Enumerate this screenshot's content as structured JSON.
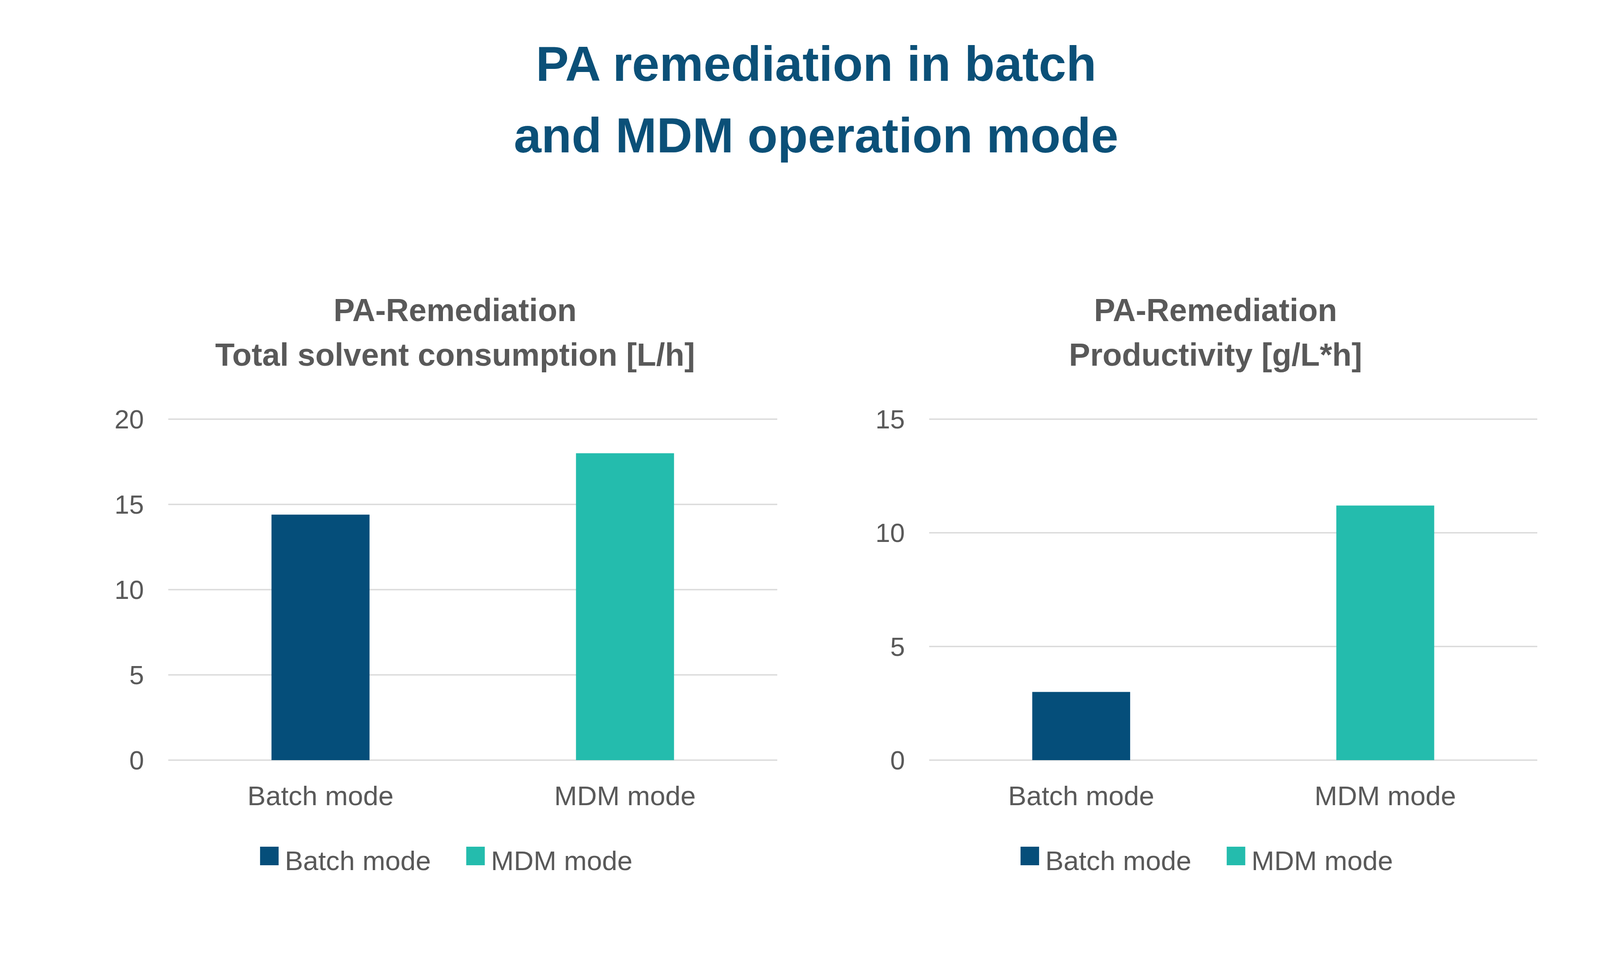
{
  "title_lines": [
    "PA remediation in batch",
    "and MDM operation mode"
  ],
  "chart_data": [
    {
      "type": "bar",
      "title": "PA-Remediation",
      "subtitle": "Total solvent consumption [L/h]",
      "categories": [
        "Batch mode",
        "MDM mode"
      ],
      "values": [
        14.4,
        18.0
      ],
      "colors": [
        "#054e7a",
        "#24bcad"
      ],
      "ylim": [
        0,
        20
      ],
      "yticks": [
        0,
        5,
        10,
        15,
        20
      ],
      "grid": true,
      "legend": "bottom"
    },
    {
      "type": "bar",
      "title": "PA-Remediation",
      "subtitle": "Productivity [g/L*h]",
      "categories": [
        "Batch mode",
        "MDM mode"
      ],
      "values": [
        3.0,
        11.2
      ],
      "colors": [
        "#054e7a",
        "#24bcad"
      ],
      "ylim": [
        0,
        15
      ],
      "yticks": [
        0,
        5,
        10,
        15
      ],
      "grid": true,
      "legend": "bottom"
    }
  ]
}
